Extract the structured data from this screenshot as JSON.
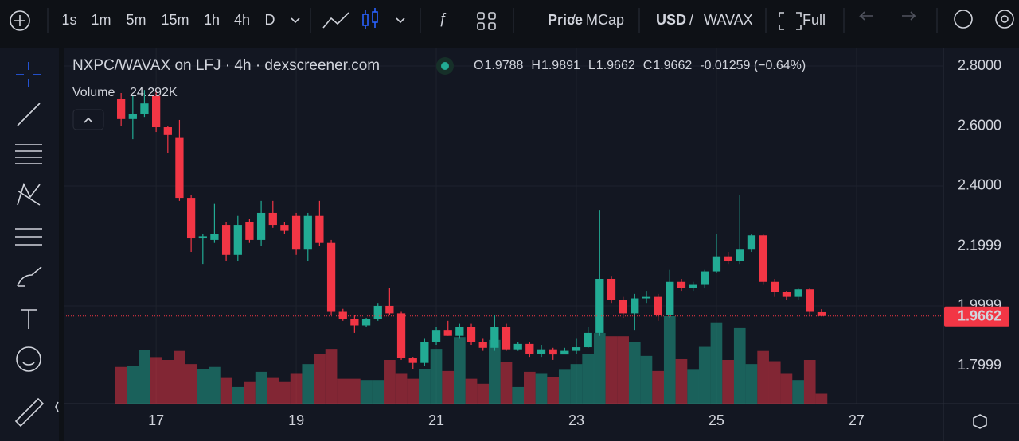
{
  "toolbar": {
    "intervals": [
      "1s",
      "1m",
      "5m",
      "15m",
      "1h",
      "4h",
      "D"
    ],
    "active_interval": 5,
    "price_toggle": [
      "Price",
      "/",
      "MCap"
    ],
    "currency_toggle": [
      "USD",
      "/",
      "WAVAX"
    ],
    "fullscreen": "Full"
  },
  "chart_data": {
    "type": "candlestick",
    "title": "NXPC/WAVAX on LFJ · 4h · dexscreener.com",
    "legend": {
      "open_label": "O",
      "open": "1.9788",
      "high_label": "H",
      "high": "1.9891",
      "low_label": "L",
      "low": "1.9662",
      "close_label": "C",
      "close": "1.9662",
      "change": "-0.01259 (−0.64%)"
    },
    "volume_label": "Volume",
    "volume_value": "24.292K",
    "up_color": "#22ab94",
    "down_color": "#f23645",
    "x": [
      16.5,
      16.667,
      16.833,
      17,
      17.167,
      17.333,
      17.5,
      17.667,
      17.833,
      18,
      18.167,
      18.333,
      18.5,
      18.667,
      18.833,
      19,
      19.167,
      19.333,
      19.5,
      19.667,
      19.833,
      20,
      20.167,
      20.333,
      20.5,
      20.667,
      20.833,
      21,
      21.167,
      21.333,
      21.5,
      21.667,
      21.833,
      22,
      22.167,
      22.333,
      22.5,
      22.667,
      22.833,
      23,
      23.167,
      23.333,
      23.5,
      23.667,
      23.833,
      24,
      24.167,
      24.333,
      24.5,
      24.667,
      24.833,
      25,
      25.167,
      25.333,
      25.5,
      25.667,
      25.833,
      26,
      26.167,
      26.333,
      26.5
    ],
    "open": [
      2.689,
      2.623,
      2.641,
      2.7,
      2.596,
      2.56,
      2.36,
      2.225,
      2.22,
      2.27,
      2.17,
      2.28,
      2.22,
      2.31,
      2.27,
      2.3,
      2.19,
      2.3,
      2.21,
      1.98,
      1.955,
      1.935,
      1.955,
      2.0,
      1.975,
      1.825,
      1.81,
      1.88,
      1.92,
      1.9,
      1.93,
      1.88,
      1.86,
      1.93,
      1.855,
      1.873,
      1.84,
      1.855,
      1.838,
      1.85,
      1.862,
      1.91,
      2.09,
      2.02,
      1.975,
      2.025,
      2.03,
      1.97,
      2.08,
      2.06,
      2.07,
      2.115,
      2.165,
      2.15,
      2.19,
      2.235,
      2.08,
      2.045,
      2.03,
      2.055,
      1.9788
    ],
    "high": [
      2.71,
      2.7,
      2.72,
      2.72,
      2.6,
      2.62,
      2.37,
      2.24,
      2.34,
      2.28,
      2.3,
      2.29,
      2.35,
      2.35,
      2.28,
      2.31,
      2.31,
      2.35,
      2.22,
      1.99,
      1.97,
      1.96,
      2.01,
      2.06,
      1.98,
      1.83,
      1.89,
      1.93,
      1.95,
      1.94,
      1.94,
      1.89,
      1.97,
      1.94,
      1.88,
      1.88,
      1.87,
      1.86,
      1.86,
      1.89,
      1.93,
      2.32,
      2.1,
      2.03,
      2.04,
      2.05,
      2.04,
      2.12,
      2.09,
      2.08,
      2.12,
      2.24,
      2.18,
      2.37,
      2.24,
      2.24,
      2.09,
      2.05,
      2.06,
      2.06,
      1.9891
    ],
    "low": [
      2.6,
      2.556,
      2.63,
      2.58,
      2.51,
      2.35,
      2.18,
      2.14,
      2.21,
      2.15,
      2.15,
      2.21,
      2.2,
      2.26,
      2.24,
      2.17,
      2.15,
      2.2,
      1.97,
      1.95,
      1.91,
      1.93,
      1.95,
      1.97,
      1.82,
      1.79,
      1.8,
      1.87,
      1.9,
      1.89,
      1.87,
      1.85,
      1.85,
      1.85,
      1.85,
      1.83,
      1.83,
      1.82,
      1.84,
      1.84,
      1.86,
      1.9,
      2.01,
      1.96,
      1.92,
      2.01,
      1.95,
      1.96,
      2.05,
      2.05,
      2.06,
      2.11,
      2.14,
      2.14,
      2.18,
      2.07,
      2.03,
      2.02,
      2.02,
      1.97,
      1.9662
    ],
    "close": [
      2.623,
      2.641,
      2.675,
      2.596,
      2.57,
      2.36,
      2.225,
      2.232,
      2.24,
      2.17,
      2.27,
      2.22,
      2.31,
      2.27,
      2.25,
      2.19,
      2.3,
      2.21,
      1.98,
      1.955,
      1.935,
      1.955,
      2.0,
      1.975,
      1.825,
      1.81,
      1.88,
      1.92,
      1.9,
      1.93,
      1.88,
      1.86,
      1.93,
      1.855,
      1.873,
      1.84,
      1.855,
      1.838,
      1.85,
      1.862,
      1.91,
      2.09,
      2.02,
      1.975,
      2.025,
      2.03,
      1.97,
      2.08,
      2.06,
      2.07,
      2.115,
      2.165,
      2.15,
      2.19,
      2.235,
      2.08,
      2.045,
      2.03,
      2.055,
      1.98,
      1.9662
    ],
    "volume": [
      90000,
      92000,
      131000,
      114000,
      107000,
      129000,
      97000,
      85000,
      90000,
      63000,
      41000,
      53000,
      78000,
      63000,
      53000,
      73000,
      97000,
      122000,
      134000,
      61000,
      61000,
      58000,
      58000,
      107000,
      73000,
      61000,
      85000,
      134000,
      80000,
      163000,
      61000,
      49000,
      156000,
      102000,
      41000,
      78000,
      73000,
      66000,
      83000,
      97000,
      122000,
      173000,
      165000,
      165000,
      151000,
      117000,
      80000,
      214000,
      109000,
      83000,
      139000,
      199000,
      107000,
      185000,
      97000,
      129000,
      104000,
      73000,
      58000,
      107000,
      24292
    ],
    "xlim": [
      15.68,
      28.24
    ],
    "xticks": [
      17,
      19,
      21,
      23,
      25,
      27
    ],
    "ylim": [
      1.674,
      2.861
    ],
    "yticks": [
      {
        "value": 2.8,
        "label": "2.8000"
      },
      {
        "value": 2.6,
        "label": "2.6000"
      },
      {
        "value": 2.4,
        "label": "2.4000"
      },
      {
        "value": 2.1999,
        "label": "2.1999"
      },
      {
        "value": 1.9999,
        "label": "1.9999"
      },
      {
        "value": 1.7999,
        "label": "1.7999"
      }
    ],
    "grid": true,
    "last_price": 1.9662
  }
}
